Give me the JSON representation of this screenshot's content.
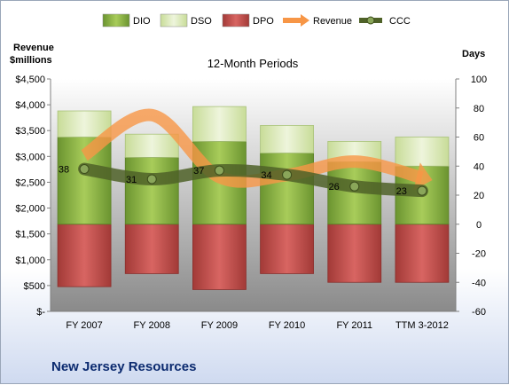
{
  "chart_data": {
    "type": "bar",
    "title": "12-Month Periods",
    "company": "New Jersey Resources",
    "left_axis_label": [
      "Revenue",
      "$millions"
    ],
    "right_axis_label": "Days",
    "categories": [
      "FY 2007",
      "FY 2008",
      "FY 2009",
      "FY 2010",
      "FY 2011",
      "TTM 3-2012"
    ],
    "left_ticks": [
      "$-",
      "$500",
      "$1,000",
      "$1,500",
      "$2,000",
      "$2,500",
      "$3,000",
      "$3,500",
      "$4,000",
      "$4,500"
    ],
    "right_ticks": [
      "-60",
      "-40",
      "-20",
      "0",
      "20",
      "40",
      "60",
      "80",
      "100"
    ],
    "left_ylim": [
      0,
      4500
    ],
    "right_ylim": [
      -60,
      100
    ],
    "legend": [
      "DIO",
      "DSO",
      "DPO",
      "Revenue",
      "CCC"
    ],
    "series": [
      {
        "name": "DIO",
        "color": "#7aa233",
        "values": [
          60,
          46,
          57,
          49,
          43,
          40
        ]
      },
      {
        "name": "DSO",
        "color": "#d8e8b0",
        "values": [
          18,
          16,
          24,
          19,
          14,
          20
        ]
      },
      {
        "name": "DPO",
        "color": "#c0504d",
        "values": [
          -43,
          -34,
          -45,
          -34,
          -40,
          -40
        ]
      },
      {
        "name": "Revenue",
        "color": "#f79646",
        "values": [
          3020,
          3800,
          2600,
          2640,
          2900,
          2590
        ]
      },
      {
        "name": "CCC",
        "color": "#4f6228",
        "values": [
          38,
          31,
          37,
          34,
          26,
          23
        ]
      }
    ],
    "ccc_labels": [
      "38",
      "31",
      "37",
      "34",
      "26",
      "23"
    ],
    "grid": false,
    "legend_position": "top"
  }
}
